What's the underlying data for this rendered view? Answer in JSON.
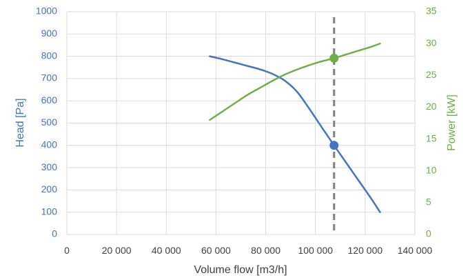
{
  "chart_data": {
    "type": "line",
    "title": "",
    "xlabel": "Volume flow [m3/h]",
    "ylabel_left": "Head [Pa]",
    "ylabel_right": "Power [kW]",
    "xlim": [
      0,
      140000
    ],
    "ylim_left": [
      0,
      1000
    ],
    "ylim_right": [
      0,
      35
    ],
    "x_ticks": [
      0,
      20000,
      40000,
      60000,
      80000,
      100000,
      120000,
      140000
    ],
    "x_tick_labels": [
      "0",
      "20 000",
      "40 000",
      "60 000",
      "80 000",
      "100 000",
      "120 000",
      "140 000"
    ],
    "y_left_ticks": [
      0,
      100,
      200,
      300,
      400,
      500,
      600,
      700,
      800,
      900,
      1000
    ],
    "y_left_tick_labels": [
      "0",
      "100",
      "200",
      "300",
      "400",
      "500",
      "600",
      "700",
      "800",
      "900",
      "1000"
    ],
    "y_right_ticks": [
      0,
      5,
      10,
      15,
      20,
      25,
      30,
      35
    ],
    "y_right_tick_labels": [
      "0",
      "5",
      "10",
      "15",
      "20",
      "25",
      "30",
      "35"
    ],
    "grid": true,
    "legend": "none",
    "series": [
      {
        "axis": "left",
        "color": "#4472C4",
        "x": [
          57500,
          62500,
          67500,
          72500,
          77500,
          82500,
          87500,
          92500,
          97500,
          102500,
          107500,
          112500,
          117500,
          122500,
          126000
        ],
        "values": [
          800,
          787,
          772,
          757,
          742,
          722,
          692,
          642,
          565,
          482,
          400,
          320,
          240,
          160,
          100
        ]
      },
      {
        "axis": "right",
        "color": "#70AD47",
        "x": [
          57500,
          62500,
          67500,
          72500,
          77500,
          82500,
          87500,
          92500,
          97500,
          102500,
          107500,
          112500,
          117500,
          122500,
          126000
        ],
        "values": [
          18.0,
          19.3,
          20.6,
          21.9,
          23.0,
          24.1,
          25.1,
          25.9,
          26.6,
          27.2,
          27.7,
          28.3,
          28.9,
          29.5,
          30.0
        ]
      }
    ],
    "reference_line": {
      "x": 107500,
      "style": "dashed",
      "color": "#7F7F7F"
    },
    "markers": [
      {
        "axis": "left",
        "x": 107500,
        "y": 400,
        "color": "#4472C4"
      },
      {
        "axis": "right",
        "x": 107500,
        "y": 27.7,
        "color": "#70AD47"
      }
    ],
    "colors": {
      "left_axis": "#4472C4",
      "right_axis": "#70AD47",
      "x_axis": "#404040",
      "grid": "#D9D9D9"
    }
  }
}
